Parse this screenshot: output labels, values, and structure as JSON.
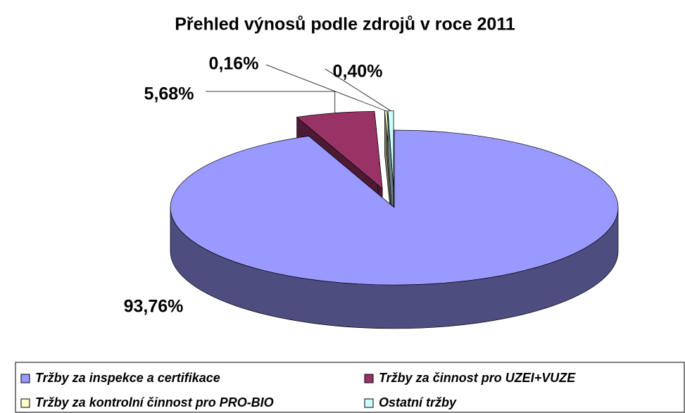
{
  "chart_data": {
    "type": "pie3d",
    "title": "Přehled výnosů podle zdrojů v roce 2011",
    "categories": [
      "Tržby za inspekce a certifikace",
      "Tržby za činnost pro UZEI+VUZE",
      "Tržby za kontrolní činnost pro PRO-BIO",
      "Ostatní tržby"
    ],
    "values": [
      93.76,
      5.68,
      0.16,
      0.4
    ],
    "value_labels": [
      "93,76%",
      "5,68%",
      "0,16%",
      "0,40%"
    ],
    "colors": [
      "#9999ff",
      "#993366",
      "#ffffcc",
      "#ccffff"
    ],
    "legend": "bottom"
  }
}
